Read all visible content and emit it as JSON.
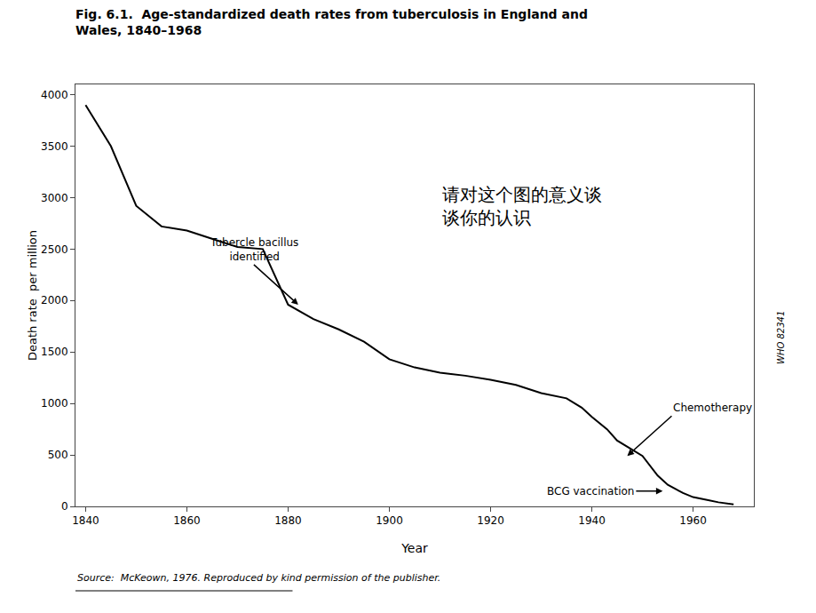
{
  "chart_data": {
    "type": "line",
    "title": "Fig. 6.1.  Age-standardized death rates from tuberculosis in England and\nWales, 1840–1968",
    "xlabel": "Year",
    "ylabel": "Death rate  per million",
    "x": [
      1840,
      1845,
      1850,
      1855,
      1860,
      1865,
      1870,
      1875,
      1880,
      1885,
      1890,
      1895,
      1900,
      1905,
      1910,
      1915,
      1920,
      1925,
      1930,
      1935,
      1938,
      1940,
      1943,
      1945,
      1947,
      1950,
      1953,
      1955,
      1958,
      1960,
      1963,
      1965,
      1968
    ],
    "values": [
      3900,
      3500,
      2920,
      2720,
      2680,
      2600,
      2520,
      2500,
      1960,
      1820,
      1720,
      1600,
      1430,
      1350,
      1300,
      1270,
      1230,
      1180,
      1100,
      1050,
      960,
      870,
      750,
      640,
      580,
      490,
      300,
      210,
      130,
      90,
      60,
      40,
      20
    ],
    "color": "#000000",
    "xlim": [
      1838,
      1972
    ],
    "ylim": [
      0,
      4100
    ],
    "xticks": [
      1840,
      1860,
      1880,
      1900,
      1920,
      1940,
      1960
    ],
    "yticks": [
      0,
      500,
      1000,
      1500,
      2000,
      2500,
      3000,
      3500,
      4000
    ],
    "grid": false,
    "annotations": [
      {
        "text": "Tubercle bacillus\nidentified",
        "x": 1882,
        "y": 1960
      },
      {
        "text": "Chemotherapy",
        "x": 1947,
        "y": 490
      },
      {
        "text": "BCG vaccination",
        "x": 1954,
        "y": 148
      }
    ],
    "note": {
      "text": "请对这个图的意义谈\n谈你的认识",
      "x": 1910,
      "y": 3150
    },
    "source": "Source:  McKeown, 1976. Reproduced by kind permission of the publisher.",
    "watermark": "WHO 82341"
  }
}
